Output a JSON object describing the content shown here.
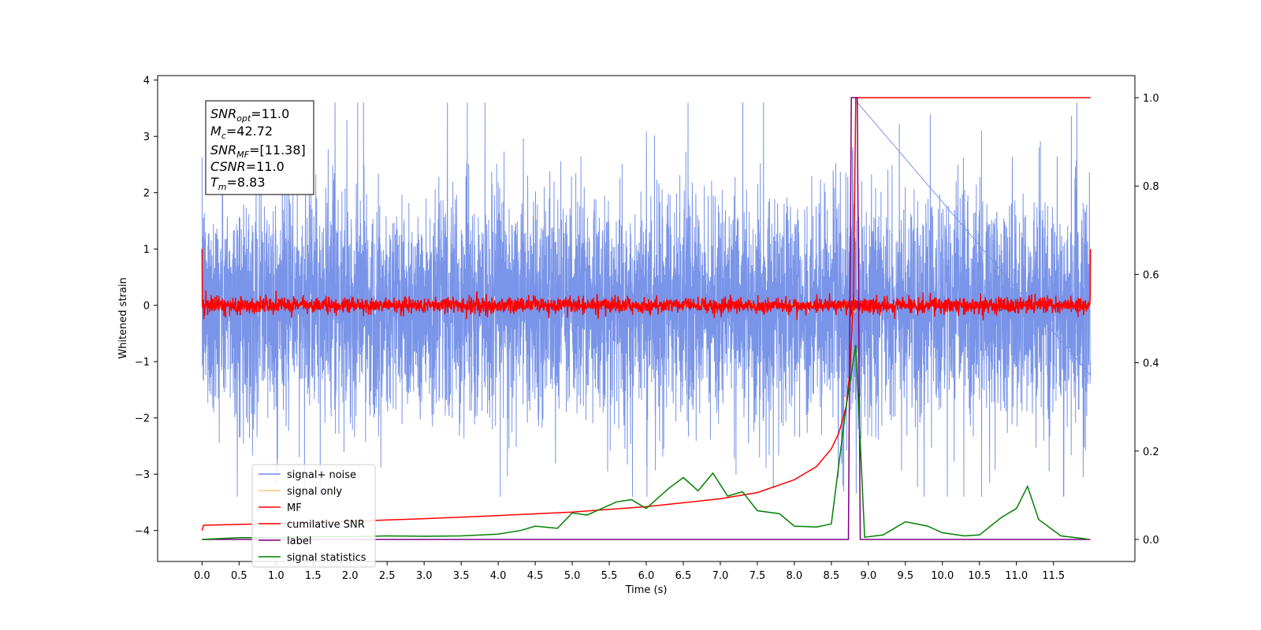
{
  "chart_data": {
    "type": "line",
    "xlabel": "Time (s)",
    "ylabel": "Whitened strain",
    "xlim": [
      -0.6,
      12.6
    ],
    "ylim": [
      -4.55,
      4.08
    ],
    "ylim_right": [
      -0.05,
      1.05
    ],
    "x_ticks": [
      0.0,
      0.5,
      1.0,
      1.5,
      2.0,
      2.5,
      3.0,
      3.5,
      4.0,
      4.5,
      5.0,
      5.5,
      6.0,
      6.5,
      7.0,
      7.5,
      8.0,
      8.5,
      9.0,
      9.5,
      10.0,
      10.5,
      11.0,
      11.5
    ],
    "x_tick_labels": [
      "0.0",
      "0.5",
      "1.0",
      "1.5",
      "2.0",
      "2.5",
      "3.0",
      "3.5",
      "4.0",
      "4.5",
      "5.0",
      "5.5",
      "6.0",
      "6.5",
      "7.0",
      "7.5",
      "8.0",
      "8.5",
      "9.0",
      "9.5",
      "10.0",
      "10.5",
      "11.0",
      "11.5"
    ],
    "y_ticks": [
      4,
      3,
      2,
      1,
      0,
      -1,
      -2,
      -3,
      -4
    ],
    "y_tick_labels": [
      "4",
      "3",
      "2",
      "1",
      "0",
      "−1",
      "−2",
      "−3",
      "−4"
    ],
    "y_ticks_right": [
      1.0,
      0.8,
      0.6,
      0.4,
      0.2,
      0.0
    ],
    "y_tick_labels_right": [
      "1.0",
      "0.8",
      "0.6",
      "0.4",
      "0.2",
      "0.0"
    ],
    "legend_position": "lower-left",
    "legend": [
      "signal+ noise",
      "signal only",
      "MF",
      "cumilative SNR",
      "label",
      "signal statistics"
    ],
    "colors": {
      "signal_noise": "#6a88e6",
      "signal_only": "#f5c97a",
      "mf": "#ff0000",
      "cumulative_snr": "#ff0000",
      "label": "#800080",
      "signal_statistics": "#008000"
    },
    "series": [
      {
        "name": "signal+ noise",
        "axis": "left",
        "description_values": "noise amplitude range approx -3.4 to 3.6 over t 0 to 12, peak 3.65 near t 8.83"
      },
      {
        "name": "MF",
        "axis": "left",
        "x": [
          0.0,
          0.02,
          0.5,
          1.0,
          2.0,
          3.0,
          4.0,
          5.0,
          6.0,
          7.0,
          8.0,
          8.5,
          8.8,
          9.0,
          10.0,
          11.0,
          11.9,
          11.98,
          12.0
        ],
        "y": [
          1.0,
          0.0,
          0.0,
          0.0,
          0.0,
          0.0,
          0.0,
          0.0,
          0.0,
          0.0,
          0.0,
          0.0,
          0.0,
          0.0,
          0.0,
          0.0,
          0.0,
          0.0,
          1.0
        ]
      },
      {
        "name": "cumilative SNR",
        "axis": "right",
        "x": [
          0.0,
          0.02,
          1.0,
          2.0,
          3.0,
          4.0,
          5.0,
          6.0,
          7.0,
          7.5,
          8.0,
          8.3,
          8.5,
          8.6,
          8.7,
          8.75,
          8.8,
          8.83,
          8.9,
          10.0,
          12.0
        ],
        "y": [
          0.02,
          0.032,
          0.036,
          0.041,
          0.047,
          0.054,
          0.062,
          0.074,
          0.092,
          0.106,
          0.135,
          0.165,
          0.205,
          0.24,
          0.3,
          0.38,
          0.55,
          1.0,
          1.0,
          1.0,
          1.0
        ]
      },
      {
        "name": "label",
        "axis": "right",
        "x": [
          0.0,
          8.73,
          8.77,
          8.85,
          8.89,
          12.0
        ],
        "y": [
          0.0,
          0.0,
          1.0,
          1.0,
          0.0,
          0.0
        ]
      },
      {
        "name": "signal statistics",
        "axis": "right",
        "x": [
          0.0,
          0.5,
          1.0,
          1.5,
          2.0,
          2.5,
          3.0,
          3.5,
          4.0,
          4.3,
          4.5,
          4.8,
          5.0,
          5.2,
          5.4,
          5.6,
          5.8,
          6.0,
          6.3,
          6.5,
          6.7,
          6.9,
          7.1,
          7.3,
          7.5,
          7.8,
          8.0,
          8.3,
          8.5,
          8.7,
          8.83,
          8.95,
          9.2,
          9.5,
          9.8,
          10.0,
          10.3,
          10.5,
          10.8,
          11.0,
          11.15,
          11.3,
          11.6,
          11.95
        ],
        "y": [
          0.0,
          0.004,
          0.004,
          0.006,
          0.006,
          0.008,
          0.007,
          0.008,
          0.012,
          0.02,
          0.03,
          0.025,
          0.06,
          0.055,
          0.07,
          0.085,
          0.09,
          0.07,
          0.115,
          0.14,
          0.11,
          0.15,
          0.098,
          0.108,
          0.065,
          0.058,
          0.03,
          0.028,
          0.035,
          0.3,
          0.44,
          0.005,
          0.01,
          0.04,
          0.03,
          0.015,
          0.008,
          0.01,
          0.05,
          0.07,
          0.12,
          0.045,
          0.008,
          0.001
        ]
      }
    ],
    "info_box": [
      "SNR_opt=11.0",
      "M_c=42.72",
      "SNR_MF=[11.38]",
      "CSNR=11.0",
      "T_m=8.83"
    ]
  }
}
